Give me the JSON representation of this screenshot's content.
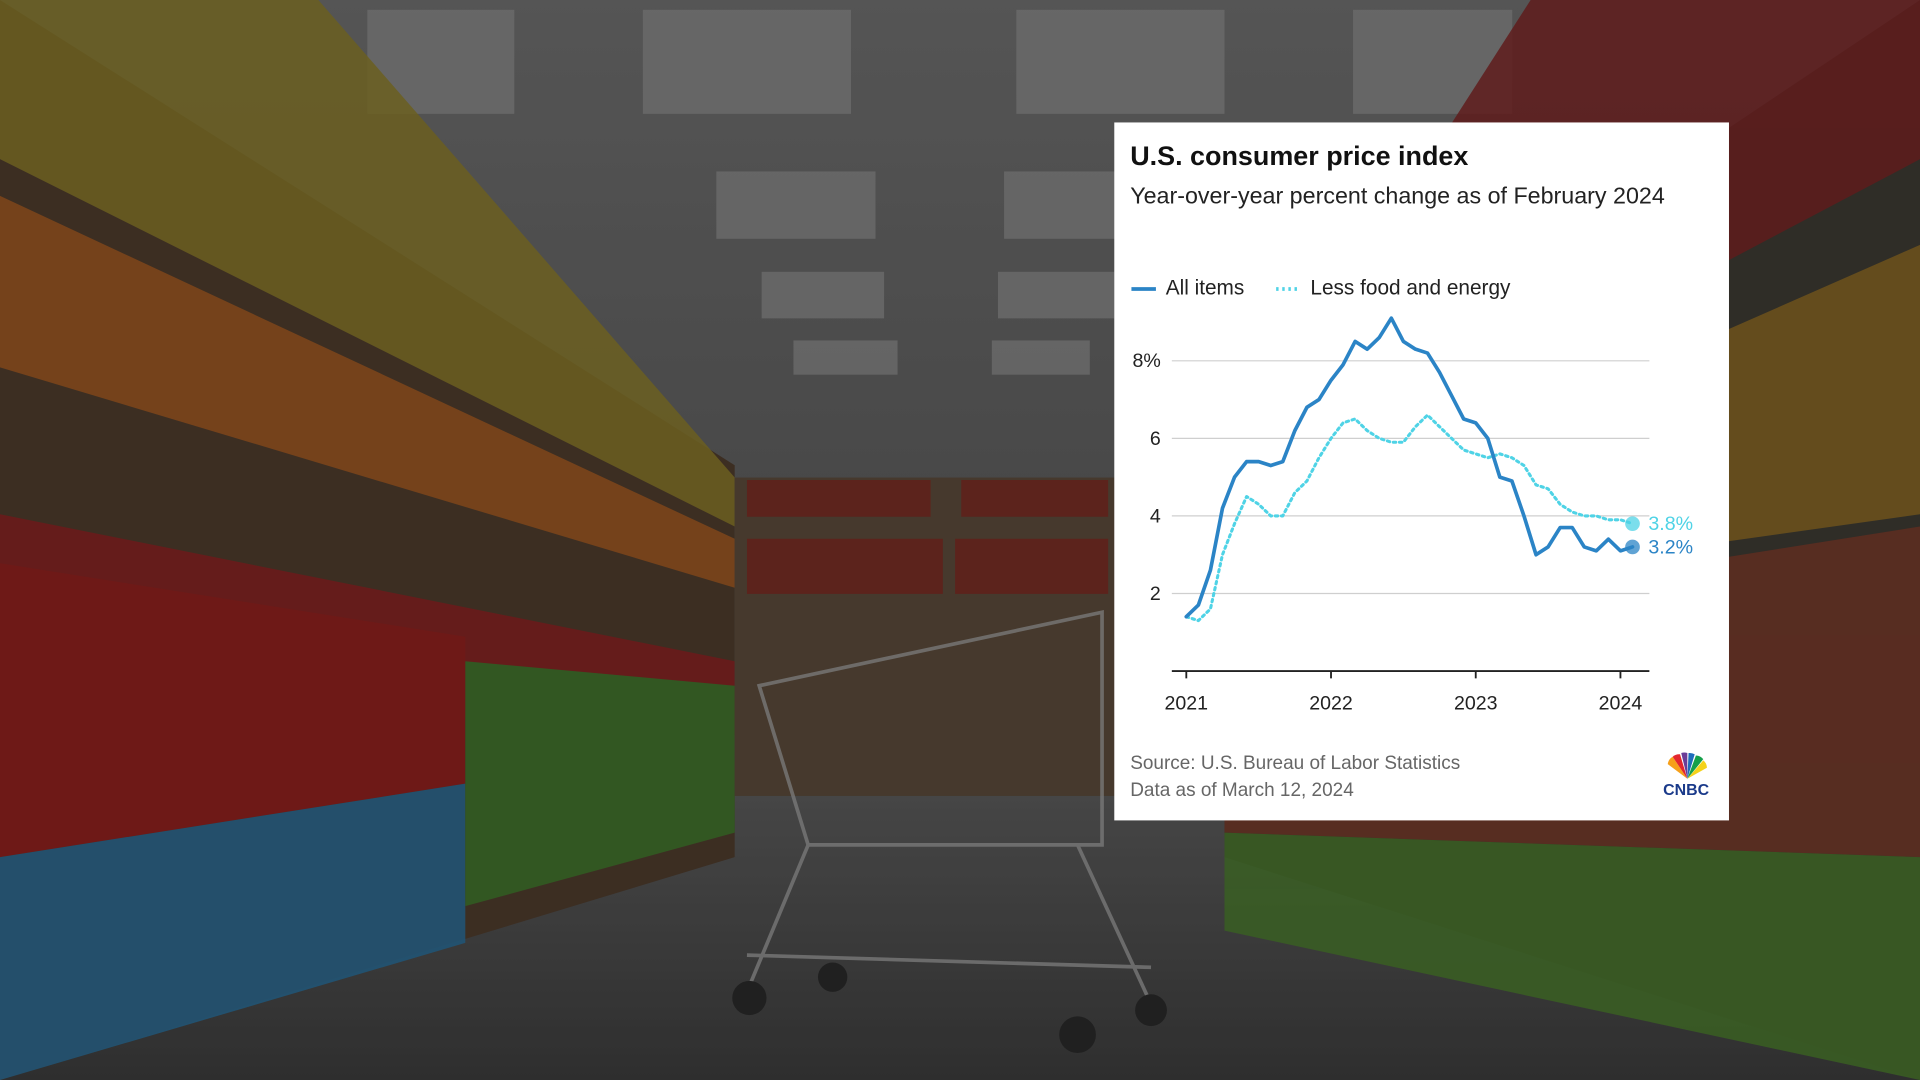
{
  "chart_data": {
    "type": "line",
    "title": "U.S. consumer price index",
    "subtitle": "Year-over-year percent change as of February 2024",
    "x": [
      2021,
      2021.0833,
      2021.1667,
      2021.25,
      2021.3333,
      2021.4167,
      2021.5,
      2021.5833,
      2021.6667,
      2021.75,
      2021.8333,
      2021.9167,
      2022,
      2022.0833,
      2022.1667,
      2022.25,
      2022.3333,
      2022.4167,
      2022.5,
      2022.5833,
      2022.6667,
      2022.75,
      2022.8333,
      2022.9167,
      2023,
      2023.0833,
      2023.1667,
      2023.25,
      2023.3333,
      2023.4167,
      2023.5,
      2023.5833,
      2023.6667,
      2023.75,
      2023.8333,
      2023.9167,
      2024,
      2024.0833
    ],
    "series": [
      {
        "name": "All items",
        "color": "#2b84c6",
        "dash": "solid",
        "values": [
          1.4,
          1.7,
          2.6,
          4.2,
          5.0,
          5.4,
          5.4,
          5.3,
          5.4,
          6.2,
          6.8,
          7.0,
          7.5,
          7.9,
          8.5,
          8.3,
          8.6,
          9.1,
          8.5,
          8.3,
          8.2,
          7.7,
          7.1,
          6.5,
          6.4,
          6.0,
          5.0,
          4.9,
          4.0,
          3.0,
          3.2,
          3.7,
          3.7,
          3.2,
          3.1,
          3.4,
          3.1,
          3.2
        ],
        "value_labels": [
          null,
          null,
          null,
          null,
          null,
          null,
          null,
          null,
          null,
          null,
          null,
          null,
          null,
          null,
          null,
          null,
          null,
          null,
          null,
          null,
          null,
          null,
          null,
          null,
          null,
          null,
          null,
          null,
          null,
          null,
          null,
          null,
          null,
          null,
          null,
          null,
          null,
          "3.2%"
        ]
      },
      {
        "name": "Less food and energy",
        "color": "#4fd3e6",
        "dash": "dotted",
        "values": [
          1.4,
          1.3,
          1.6,
          3.0,
          3.8,
          4.5,
          4.3,
          4.0,
          4.0,
          4.6,
          4.9,
          5.5,
          6.0,
          6.4,
          6.5,
          6.2,
          6.0,
          5.9,
          5.9,
          6.3,
          6.6,
          6.3,
          6.0,
          5.7,
          5.6,
          5.5,
          5.6,
          5.5,
          5.3,
          4.8,
          4.7,
          4.3,
          4.1,
          4.0,
          4.0,
          3.9,
          3.9,
          3.8
        ],
        "value_labels": [
          null,
          null,
          null,
          null,
          null,
          null,
          null,
          null,
          null,
          null,
          null,
          null,
          null,
          null,
          null,
          null,
          null,
          null,
          null,
          null,
          null,
          null,
          null,
          null,
          null,
          null,
          null,
          null,
          null,
          null,
          null,
          null,
          null,
          null,
          null,
          null,
          null,
          "3.8%"
        ]
      }
    ],
    "xlim": [
      2020.9,
      2024.2
    ],
    "xticks": [
      2021,
      2022,
      2023,
      2024
    ],
    "ylim": [
      0,
      9
    ],
    "yticks": [
      2,
      4,
      6,
      {
        "value": 8,
        "label": "8%"
      }
    ],
    "grid": true,
    "legend": "top-left",
    "source": "Source: U.S. Bureau of Labor Statistics",
    "note": "Data as of March 12, 2024",
    "logo": "CNBC"
  }
}
